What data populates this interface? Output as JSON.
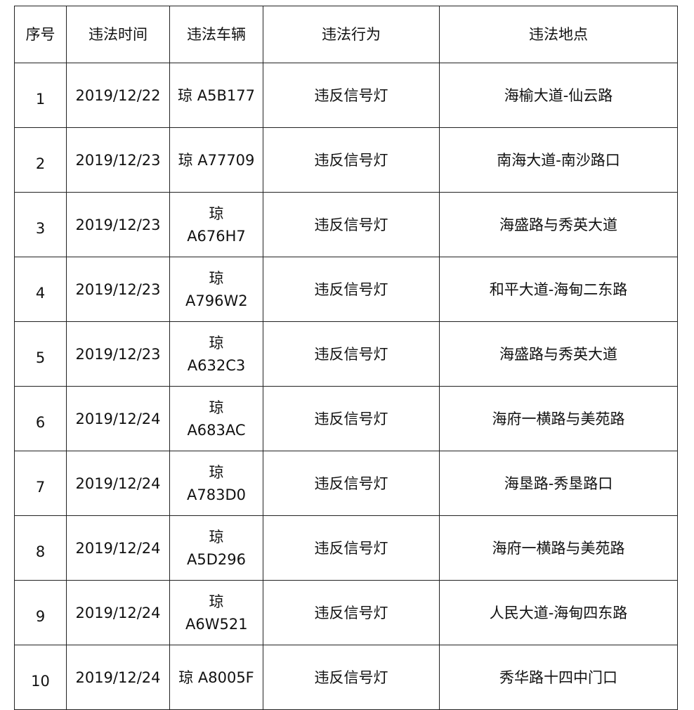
{
  "table": {
    "headers": [
      "序号",
      "违法时间",
      "违法车辆",
      "违法行为",
      "违法地点"
    ],
    "rows": [
      {
        "no": "1",
        "time": "2019/12/22",
        "vehicle": "琼 A5B177",
        "behavior": "违反信号灯",
        "location": "海榆大道-仙云路"
      },
      {
        "no": "2",
        "time": "2019/12/23",
        "vehicle": "琼 A77709",
        "behavior": "违反信号灯",
        "location": "南海大道-南沙路口"
      },
      {
        "no": "3",
        "time": "2019/12/23",
        "vehicle": "琼 A676H7",
        "behavior": "违反信号灯",
        "location": "海盛路与秀英大道"
      },
      {
        "no": "4",
        "time": "2019/12/23",
        "vehicle": "琼 A796W2",
        "behavior": "违反信号灯",
        "location": "和平大道-海甸二东路"
      },
      {
        "no": "5",
        "time": "2019/12/23",
        "vehicle": "琼 A632C3",
        "behavior": "违反信号灯",
        "location": "海盛路与秀英大道"
      },
      {
        "no": "6",
        "time": "2019/12/24",
        "vehicle": "琼 A683AC",
        "behavior": "违反信号灯",
        "location": "海府一横路与美苑路"
      },
      {
        "no": "7",
        "time": "2019/12/24",
        "vehicle": "琼 A783D0",
        "behavior": "违反信号灯",
        "location": "海垦路-秀垦路口"
      },
      {
        "no": "8",
        "time": "2019/12/24",
        "vehicle": "琼 A5D296",
        "behavior": "违反信号灯",
        "location": "海府一横路与美苑路"
      },
      {
        "no": "9",
        "time": "2019/12/24",
        "vehicle": "琼 A6W521",
        "behavior": "违反信号灯",
        "location": "人民大道-海甸四东路"
      },
      {
        "no": "10",
        "time": "2019/12/24",
        "vehicle": "琼 A8005F",
        "behavior": "违反信号灯",
        "location": "秀华路十四中门口"
      }
    ]
  }
}
